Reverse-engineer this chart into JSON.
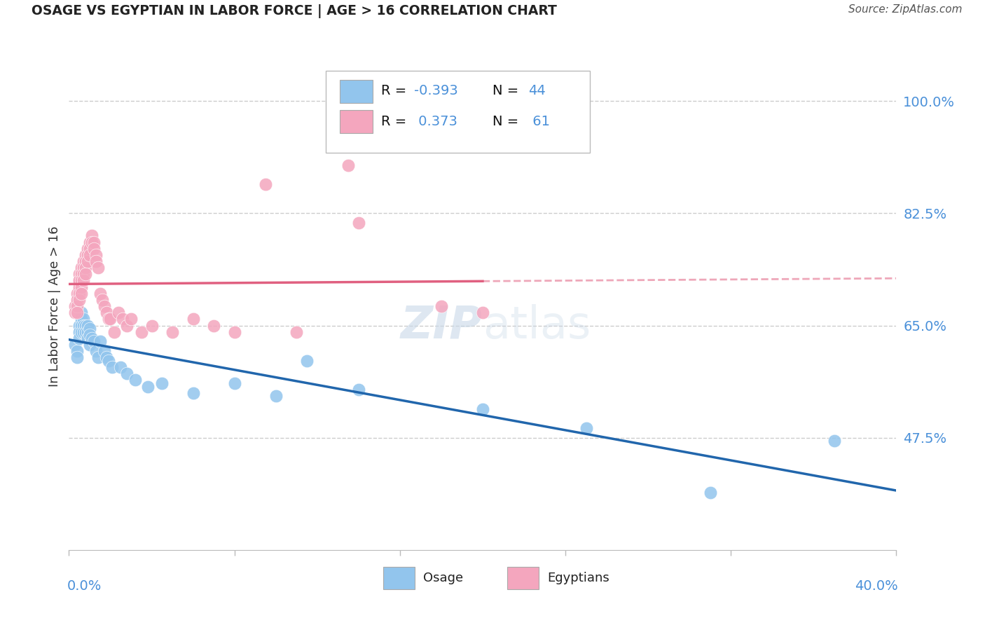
{
  "title": "OSAGE VS EGYPTIAN IN LABOR FORCE | AGE > 16 CORRELATION CHART",
  "source": "Source: ZipAtlas.com",
  "ylabel": "In Labor Force | Age > 16",
  "xlim": [
    0.0,
    0.4
  ],
  "ylim": [
    0.3,
    1.06
  ],
  "ytick_right_vals": [
    1.0,
    0.825,
    0.65,
    0.475
  ],
  "ytick_right_labels": [
    "100.0%",
    "82.5%",
    "65.0%",
    "47.5%"
  ],
  "xtick_vals": [
    0.0,
    0.08,
    0.16,
    0.24,
    0.32,
    0.4
  ],
  "r_osage": -0.393,
  "n_osage": 44,
  "r_egyptian": 0.373,
  "n_egyptian": 61,
  "osage_color": "#92c5ed",
  "egyptian_color": "#f4a6be",
  "trend_osage_color": "#2166ac",
  "trend_egyptian_color": "#e06080",
  "grid_color": "#cccccc",
  "bg_color": "#ffffff",
  "title_color": "#222222",
  "tick_color": "#4a90d9",
  "legend_text_color": "#111111",
  "legend_val_color": "#4a90d9",
  "watermark_color": "#c8d8e8",
  "osage_x": [
    0.003,
    0.004,
    0.004,
    0.005,
    0.005,
    0.005,
    0.006,
    0.006,
    0.006,
    0.006,
    0.007,
    0.007,
    0.007,
    0.008,
    0.008,
    0.009,
    0.009,
    0.009,
    0.01,
    0.01,
    0.01,
    0.011,
    0.012,
    0.013,
    0.014,
    0.015,
    0.017,
    0.018,
    0.019,
    0.021,
    0.025,
    0.028,
    0.032,
    0.038,
    0.045,
    0.06,
    0.08,
    0.1,
    0.115,
    0.14,
    0.2,
    0.25,
    0.31,
    0.37
  ],
  "osage_y": [
    0.62,
    0.61,
    0.6,
    0.65,
    0.64,
    0.63,
    0.67,
    0.66,
    0.65,
    0.64,
    0.66,
    0.65,
    0.64,
    0.65,
    0.64,
    0.65,
    0.64,
    0.63,
    0.645,
    0.635,
    0.62,
    0.63,
    0.625,
    0.61,
    0.6,
    0.625,
    0.61,
    0.6,
    0.595,
    0.585,
    0.585,
    0.575,
    0.565,
    0.555,
    0.56,
    0.545,
    0.56,
    0.54,
    0.595,
    0.55,
    0.52,
    0.49,
    0.39,
    0.47
  ],
  "egyptian_x": [
    0.003,
    0.003,
    0.004,
    0.004,
    0.004,
    0.004,
    0.005,
    0.005,
    0.005,
    0.005,
    0.005,
    0.005,
    0.006,
    0.006,
    0.006,
    0.006,
    0.006,
    0.007,
    0.007,
    0.007,
    0.007,
    0.008,
    0.008,
    0.008,
    0.008,
    0.009,
    0.009,
    0.009,
    0.01,
    0.01,
    0.01,
    0.011,
    0.011,
    0.012,
    0.012,
    0.013,
    0.013,
    0.014,
    0.015,
    0.016,
    0.017,
    0.018,
    0.019,
    0.02,
    0.022,
    0.024,
    0.026,
    0.028,
    0.03,
    0.035,
    0.04,
    0.05,
    0.06,
    0.07,
    0.08,
    0.095,
    0.11,
    0.14,
    0.18,
    0.2,
    0.135
  ],
  "egyptian_y": [
    0.68,
    0.67,
    0.7,
    0.69,
    0.68,
    0.67,
    0.72,
    0.71,
    0.7,
    0.69,
    0.73,
    0.72,
    0.74,
    0.73,
    0.72,
    0.71,
    0.7,
    0.75,
    0.74,
    0.73,
    0.72,
    0.76,
    0.75,
    0.74,
    0.73,
    0.77,
    0.76,
    0.75,
    0.78,
    0.77,
    0.76,
    0.79,
    0.78,
    0.78,
    0.77,
    0.76,
    0.75,
    0.74,
    0.7,
    0.69,
    0.68,
    0.67,
    0.66,
    0.66,
    0.64,
    0.67,
    0.66,
    0.65,
    0.66,
    0.64,
    0.65,
    0.64,
    0.66,
    0.65,
    0.64,
    0.87,
    0.64,
    0.81,
    0.68,
    0.67,
    0.9
  ]
}
